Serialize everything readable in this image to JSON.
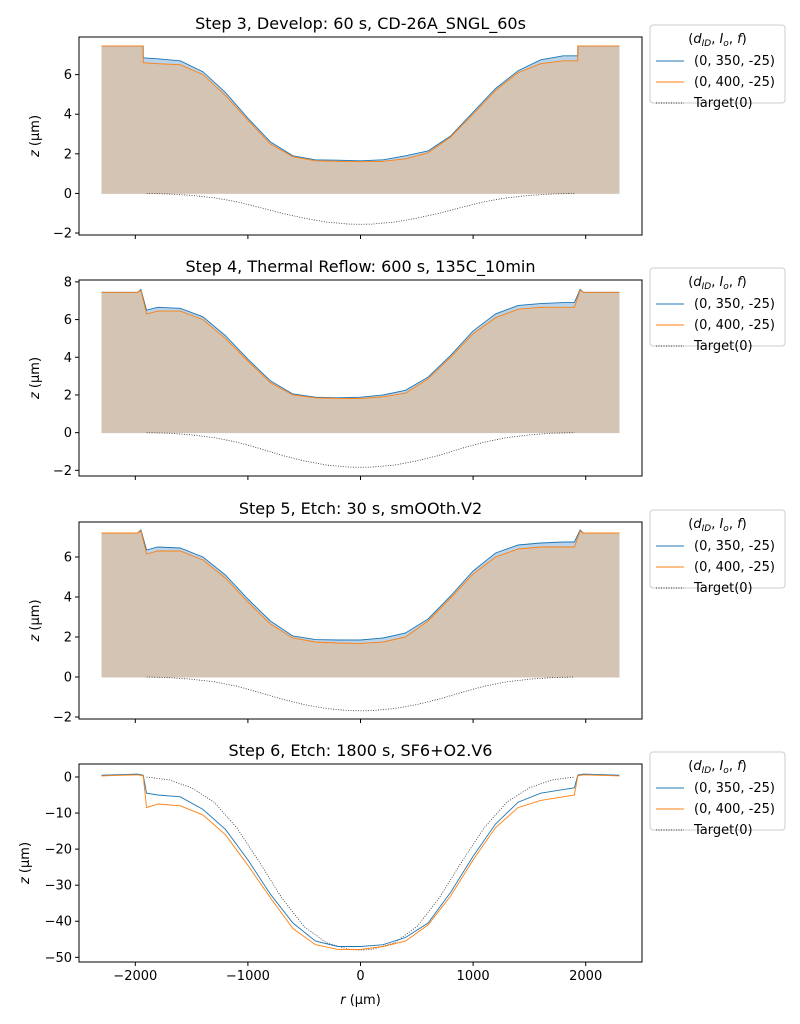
{
  "figure": {
    "xlabel": "r (µm)",
    "legend": {
      "title": "(d_ID, I_o, f)",
      "title_parts": {
        "open": "(",
        "d": "d",
        "d_sub": "ID",
        "I": "I",
        "I_sub": "o",
        "f": "f",
        "sep": ", ",
        "close": ")"
      },
      "entries": [
        "(0, 350, -25)",
        "(0, 400, -25)",
        "Target(0)"
      ]
    },
    "ylabel_parts": {
      "var": "z",
      "unit": "(µm)"
    },
    "xlabel_parts": {
      "var": "r",
      "unit": "(µm)"
    }
  },
  "colors": {
    "series1": "#1f77b4",
    "series2": "#ff7f0e",
    "target": "#333333",
    "fill": "#d4c4b4",
    "fill_blue": "#b8d3ea"
  },
  "chart_data": [
    {
      "type": "area",
      "title": "Step 3, Develop: 60 s, CD-26A_SNGL_60s",
      "xlim": [
        -2500,
        2500
      ],
      "ylim": [
        -2.1,
        7.9
      ],
      "xticks": [
        -2000,
        -1000,
        0,
        1000,
        2000
      ],
      "xtick_labels": [
        "−2000",
        "−1000",
        "0",
        "1000",
        "2000"
      ],
      "yticks": [
        -2,
        0,
        2,
        4,
        6
      ],
      "ytick_labels": [
        "−2",
        "0",
        "2",
        "4",
        "6"
      ],
      "legend": "outside-right",
      "series": [
        {
          "name": "(0, 350, -25)",
          "x": [
            -2300,
            -1930,
            -1929,
            -1800,
            -1600,
            -1400,
            -1200,
            -1000,
            -800,
            -600,
            -400,
            -200,
            0,
            200,
            400,
            600,
            800,
            1000,
            1200,
            1400,
            1600,
            1800,
            1929,
            1930,
            2300
          ],
          "y": [
            7.45,
            7.45,
            6.85,
            6.8,
            6.7,
            6.15,
            5.1,
            3.8,
            2.6,
            1.9,
            1.7,
            1.68,
            1.65,
            1.7,
            1.9,
            2.15,
            2.9,
            4.1,
            5.3,
            6.2,
            6.75,
            6.95,
            6.95,
            7.45,
            7.45
          ]
        },
        {
          "name": "(0, 400, -25)",
          "x": [
            -2300,
            -1930,
            -1929,
            -1800,
            -1600,
            -1400,
            -1200,
            -1000,
            -800,
            -600,
            -400,
            -200,
            0,
            200,
            400,
            600,
            800,
            1000,
            1200,
            1400,
            1600,
            1800,
            1929,
            1930,
            2300
          ],
          "y": [
            7.45,
            7.45,
            6.6,
            6.55,
            6.5,
            6.0,
            4.95,
            3.7,
            2.5,
            1.85,
            1.65,
            1.62,
            1.6,
            1.62,
            1.75,
            2.05,
            2.85,
            4.0,
            5.2,
            6.1,
            6.55,
            6.7,
            6.7,
            7.45,
            7.45
          ]
        },
        {
          "name": "Target(0)",
          "x": [
            -1900,
            -1700,
            -1500,
            -1300,
            -1100,
            -900,
            -700,
            -500,
            -300,
            -100,
            0,
            100,
            300,
            500,
            700,
            900,
            1100,
            1300,
            1500,
            1700,
            1900
          ],
          "y": [
            0,
            -0.03,
            -0.1,
            -0.22,
            -0.42,
            -0.7,
            -1.0,
            -1.25,
            -1.45,
            -1.55,
            -1.56,
            -1.55,
            -1.45,
            -1.25,
            -1.0,
            -0.7,
            -0.42,
            -0.22,
            -0.1,
            -0.03,
            0
          ]
        }
      ]
    },
    {
      "type": "area",
      "title": "Step 4, Thermal Reflow: 600 s, 135C_10min",
      "xlim": [
        -2500,
        2500
      ],
      "ylim": [
        -2.3,
        8.1
      ],
      "xticks": [
        -2000,
        -1000,
        0,
        1000,
        2000
      ],
      "xtick_labels": [
        "−2000",
        "−1000",
        "0",
        "1000",
        "2000"
      ],
      "yticks": [
        -2,
        0,
        2,
        4,
        6,
        8
      ],
      "ytick_labels": [
        "−2",
        "0",
        "2",
        "4",
        "6",
        "8"
      ],
      "legend": "outside-right",
      "series": [
        {
          "name": "(0, 350, -25)",
          "x": [
            -2300,
            -1980,
            -1950,
            -1900,
            -1800,
            -1600,
            -1400,
            -1200,
            -1000,
            -800,
            -600,
            -400,
            -200,
            0,
            200,
            400,
            600,
            800,
            1000,
            1200,
            1400,
            1600,
            1800,
            1900,
            1950,
            1980,
            2300
          ],
          "y": [
            7.45,
            7.45,
            7.6,
            6.5,
            6.65,
            6.6,
            6.15,
            5.15,
            3.9,
            2.75,
            2.05,
            1.88,
            1.85,
            1.88,
            2.0,
            2.25,
            2.95,
            4.1,
            5.4,
            6.3,
            6.75,
            6.85,
            6.9,
            6.9,
            7.6,
            7.45,
            7.45
          ]
        },
        {
          "name": "(0, 400, -25)",
          "x": [
            -2300,
            -1980,
            -1950,
            -1900,
            -1800,
            -1600,
            -1400,
            -1200,
            -1000,
            -800,
            -600,
            -400,
            -200,
            0,
            200,
            400,
            600,
            800,
            1000,
            1200,
            1400,
            1600,
            1800,
            1900,
            1950,
            1980,
            2300
          ],
          "y": [
            7.45,
            7.45,
            7.55,
            6.3,
            6.45,
            6.45,
            6.0,
            5.0,
            3.8,
            2.65,
            2.0,
            1.85,
            1.82,
            1.82,
            1.9,
            2.1,
            2.85,
            4.0,
            5.25,
            6.1,
            6.55,
            6.65,
            6.65,
            6.65,
            7.55,
            7.45,
            7.45
          ]
        },
        {
          "name": "Target(0)",
          "x": [
            -1900,
            -1700,
            -1500,
            -1300,
            -1100,
            -900,
            -700,
            -500,
            -300,
            -100,
            0,
            100,
            300,
            500,
            700,
            900,
            1100,
            1300,
            1500,
            1700,
            1900
          ],
          "y": [
            0,
            -0.03,
            -0.12,
            -0.26,
            -0.5,
            -0.83,
            -1.2,
            -1.5,
            -1.72,
            -1.83,
            -1.84,
            -1.83,
            -1.72,
            -1.5,
            -1.2,
            -0.83,
            -0.5,
            -0.26,
            -0.12,
            -0.03,
            0
          ]
        }
      ]
    },
    {
      "type": "area",
      "title": "Step 5, Etch: 30 s, smOOth.V2",
      "xlim": [
        -2500,
        2500
      ],
      "ylim": [
        -2.1,
        7.75
      ],
      "xticks": [
        -2000,
        -1000,
        0,
        1000,
        2000
      ],
      "xtick_labels": [
        "−2000",
        "−1000",
        "0",
        "1000",
        "2000"
      ],
      "yticks": [
        -2,
        0,
        2,
        4,
        6
      ],
      "ytick_labels": [
        "−2",
        "0",
        "2",
        "4",
        "6"
      ],
      "legend": "outside-right",
      "series": [
        {
          "name": "(0, 350, -25)",
          "x": [
            -2300,
            -1980,
            -1950,
            -1900,
            -1800,
            -1600,
            -1400,
            -1200,
            -1000,
            -800,
            -600,
            -400,
            -200,
            0,
            200,
            400,
            600,
            800,
            1000,
            1200,
            1400,
            1600,
            1800,
            1900,
            1950,
            1980,
            2300
          ],
          "y": [
            7.2,
            7.2,
            7.35,
            6.35,
            6.5,
            6.45,
            6.0,
            5.1,
            3.9,
            2.8,
            2.05,
            1.87,
            1.85,
            1.85,
            1.95,
            2.2,
            2.9,
            4.05,
            5.3,
            6.2,
            6.6,
            6.7,
            6.75,
            6.75,
            7.35,
            7.2,
            7.2
          ]
        },
        {
          "name": "(0, 400, -25)",
          "x": [
            -2300,
            -1980,
            -1950,
            -1900,
            -1800,
            -1600,
            -1400,
            -1200,
            -1000,
            -800,
            -600,
            -400,
            -200,
            0,
            200,
            400,
            600,
            800,
            1000,
            1200,
            1400,
            1600,
            1800,
            1900,
            1950,
            1980,
            2300
          ],
          "y": [
            7.2,
            7.2,
            7.3,
            6.15,
            6.3,
            6.3,
            5.85,
            4.95,
            3.75,
            2.65,
            1.95,
            1.75,
            1.7,
            1.68,
            1.75,
            2.0,
            2.8,
            3.95,
            5.15,
            6.0,
            6.4,
            6.5,
            6.5,
            6.5,
            7.3,
            7.2,
            7.2
          ]
        },
        {
          "name": "Target(0)",
          "x": [
            -1900,
            -1700,
            -1500,
            -1300,
            -1100,
            -900,
            -700,
            -500,
            -300,
            -100,
            0,
            100,
            300,
            500,
            700,
            900,
            1100,
            1300,
            1500,
            1700,
            1900
          ],
          "y": [
            0,
            -0.03,
            -0.11,
            -0.24,
            -0.46,
            -0.77,
            -1.1,
            -1.38,
            -1.58,
            -1.68,
            -1.69,
            -1.68,
            -1.58,
            -1.38,
            -1.1,
            -0.77,
            -0.46,
            -0.24,
            -0.11,
            -0.03,
            0
          ]
        }
      ]
    },
    {
      "type": "line",
      "title": "Step 6, Etch: 1800 s, SF6+O2.V6",
      "xlim": [
        -2500,
        2500
      ],
      "ylim": [
        -51.3,
        3.6
      ],
      "xticks": [
        -2000,
        -1000,
        0,
        1000,
        2000
      ],
      "xtick_labels": [
        "−2000",
        "−1000",
        "0",
        "1000",
        "2000"
      ],
      "yticks": [
        0,
        -10,
        -20,
        -30,
        -40,
        -50
      ],
      "ytick_labels": [
        "0",
        "−10",
        "−20",
        "−30",
        "−40",
        "−50"
      ],
      "legend": "outside-right",
      "series": [
        {
          "name": "(0, 350, -25)",
          "x": [
            -2300,
            -1980,
            -1930,
            -1900,
            -1800,
            -1600,
            -1400,
            -1200,
            -1000,
            -800,
            -600,
            -400,
            -200,
            0,
            200,
            400,
            600,
            800,
            1000,
            1200,
            1400,
            1600,
            1800,
            1900,
            1930,
            1980,
            2300
          ],
          "y": [
            0.5,
            0.8,
            0.5,
            -4.5,
            -5.0,
            -5.5,
            -9.0,
            -14.5,
            -23.0,
            -32.5,
            -40.5,
            -45.5,
            -47.0,
            -47.0,
            -46.5,
            -44.5,
            -40.5,
            -32.0,
            -22.0,
            -13.0,
            -7.0,
            -4.5,
            -3.5,
            -3.0,
            0.5,
            0.8,
            0.5
          ]
        },
        {
          "name": "(0, 400, -25)",
          "x": [
            -2300,
            -1980,
            -1930,
            -1900,
            -1800,
            -1600,
            -1400,
            -1200,
            -1000,
            -800,
            -600,
            -400,
            -200,
            0,
            200,
            400,
            600,
            800,
            1000,
            1200,
            1400,
            1600,
            1800,
            1900,
            1930,
            1980,
            2300
          ],
          "y": [
            0.3,
            0.6,
            0.3,
            -8.5,
            -7.5,
            -8.0,
            -10.5,
            -16.0,
            -24.5,
            -33.5,
            -42.0,
            -46.5,
            -47.8,
            -47.8,
            -47.0,
            -45.5,
            -41.0,
            -33.0,
            -23.0,
            -14.0,
            -8.5,
            -6.5,
            -5.5,
            -5.0,
            0.3,
            0.6,
            0.3
          ]
        },
        {
          "name": "Target(0)",
          "x": [
            -1900,
            -1700,
            -1500,
            -1300,
            -1100,
            -900,
            -700,
            -500,
            -300,
            -100,
            0,
            100,
            300,
            500,
            700,
            900,
            1100,
            1300,
            1500,
            1700,
            1900
          ],
          "y": [
            0,
            -0.8,
            -3.0,
            -7.0,
            -14.0,
            -23.5,
            -33.5,
            -41.5,
            -46.0,
            -47.8,
            -48.0,
            -47.8,
            -46.0,
            -41.5,
            -33.5,
            -23.5,
            -14.0,
            -7.0,
            -3.0,
            -0.8,
            0
          ]
        }
      ]
    }
  ]
}
